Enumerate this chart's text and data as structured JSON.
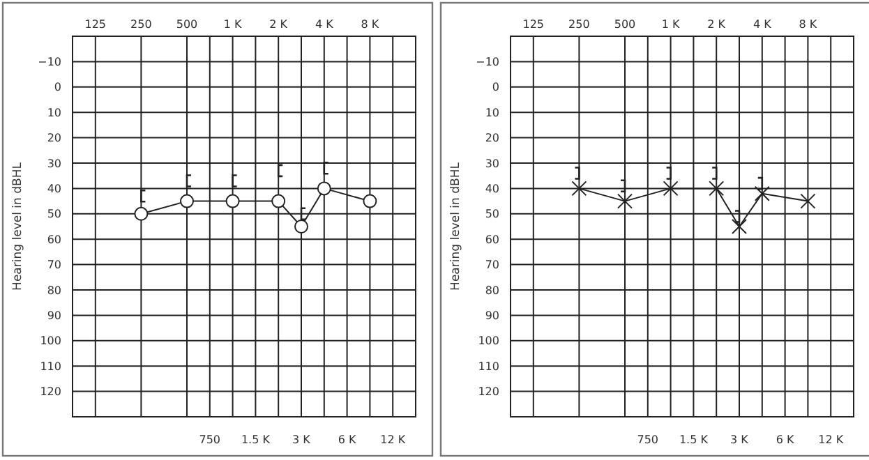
{
  "chart_data": [
    {
      "type": "line",
      "ylabel": "Hearing level in dBHL",
      "categories": [
        "125",
        null,
        "250",
        null,
        "500",
        "750",
        "1 K",
        "1.5 K",
        "2 K",
        "3 K",
        "4 K",
        "6 K",
        "8 K",
        "12 K"
      ],
      "ylim": [
        130,
        -20
      ],
      "yticks": [
        {
          "value": -10,
          "label": "−10"
        },
        0,
        10,
        20,
        30,
        40,
        50,
        60,
        70,
        80,
        90,
        100,
        110,
        120
      ],
      "grid": true,
      "series": [
        {
          "color": "#222222",
          "marker": "circle",
          "values": [
            null,
            null,
            50,
            null,
            45,
            null,
            45,
            null,
            45,
            55,
            40,
            null,
            45,
            null
          ]
        },
        {
          "type": "scatter",
          "color": "#222222",
          "values": [
            null,
            null,
            43,
            null,
            37,
            null,
            37,
            null,
            33,
            50,
            32,
            null,
            null,
            null
          ]
        }
      ]
    },
    {
      "type": "line",
      "ylabel": "Hearing level in dBHL",
      "categories": [
        "125",
        null,
        "250",
        null,
        "500",
        "750",
        "1 K",
        "1.5 K",
        "2 K",
        "3 K",
        "4 K",
        "6 K",
        "8 K",
        "12 K"
      ],
      "ylim": [
        130,
        -20
      ],
      "yticks": [
        {
          "value": -10,
          "label": "−10"
        },
        0,
        10,
        20,
        30,
        40,
        50,
        60,
        70,
        80,
        90,
        100,
        110,
        120
      ],
      "grid": true,
      "series": [
        {
          "color": "#222222",
          "marker": "cross",
          "values": [
            null,
            null,
            40,
            null,
            45,
            null,
            40,
            null,
            40,
            55,
            42,
            null,
            45,
            null
          ]
        },
        {
          "type": "scatter",
          "color": "#222222",
          "values": [
            null,
            null,
            34,
            null,
            39,
            null,
            34,
            null,
            34,
            51,
            38,
            null,
            null,
            null
          ]
        }
      ]
    }
  ]
}
